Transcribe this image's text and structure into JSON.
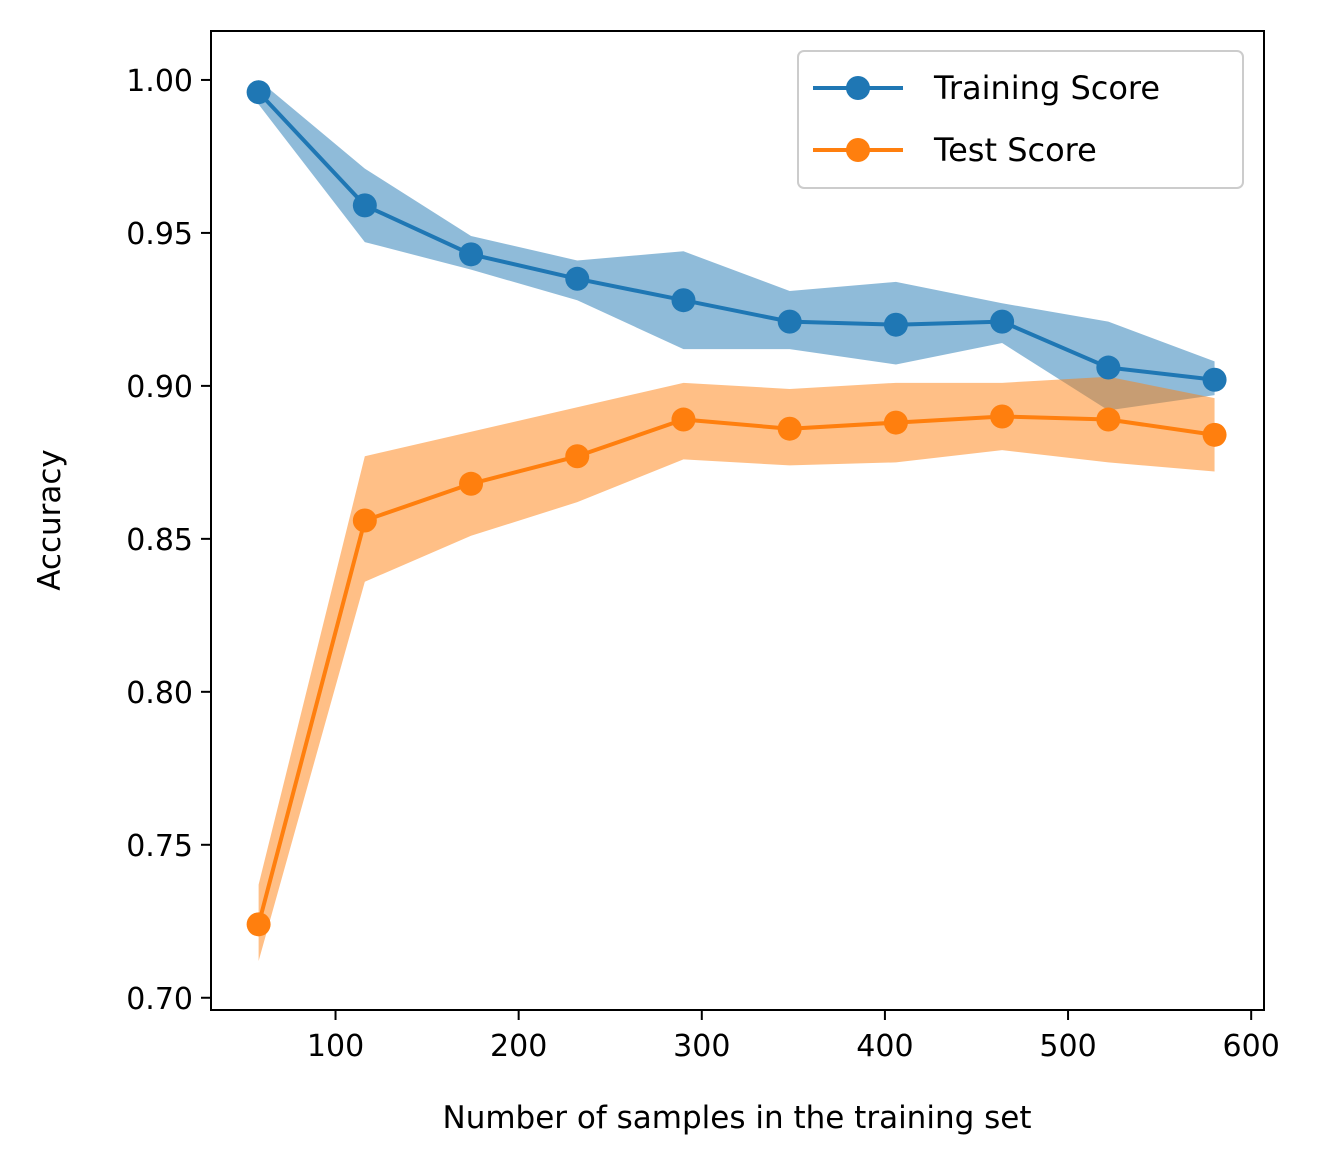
{
  "chart_data": {
    "type": "line",
    "title": "",
    "xlabel": "Number of samples in the training set",
    "ylabel": "Accuracy",
    "xlim": [
      32,
      607
    ],
    "ylim": [
      0.696,
      1.016
    ],
    "xticks": [
      100,
      200,
      300,
      400,
      500,
      600
    ],
    "xtick_labels": [
      "100",
      "200",
      "300",
      "400",
      "500",
      "600"
    ],
    "yticks": [
      0.7,
      0.75,
      0.8,
      0.85,
      0.9,
      0.95,
      1.0
    ],
    "ytick_labels": [
      "0.70",
      "0.75",
      "0.80",
      "0.85",
      "0.90",
      "0.95",
      "1.00"
    ],
    "grid": false,
    "legend_position": "top-right",
    "x": [
      58,
      116,
      174,
      232,
      290,
      348,
      406,
      464,
      522,
      580
    ],
    "series": [
      {
        "name": "Training Score",
        "color": "#1f77b4",
        "band_color": "#7fb2d9",
        "values": [
          0.996,
          0.959,
          0.943,
          0.935,
          0.928,
          0.921,
          0.92,
          0.921,
          0.906,
          0.902
        ],
        "lower": [
          0.992,
          0.947,
          0.938,
          0.928,
          0.912,
          0.912,
          0.907,
          0.914,
          0.892,
          0.897
        ],
        "upper": [
          1.0,
          0.971,
          0.949,
          0.941,
          0.944,
          0.931,
          0.934,
          0.927,
          0.921,
          0.908
        ]
      },
      {
        "name": "Test Score",
        "color": "#ff7f0e",
        "band_color": "#ffbf87",
        "values": [
          0.724,
          0.856,
          0.868,
          0.877,
          0.889,
          0.886,
          0.888,
          0.89,
          0.889,
          0.884
        ],
        "lower": [
          0.712,
          0.836,
          0.851,
          0.862,
          0.876,
          0.874,
          0.875,
          0.879,
          0.875,
          0.872
        ],
        "upper": [
          0.737,
          0.877,
          0.885,
          0.893,
          0.901,
          0.899,
          0.901,
          0.901,
          0.903,
          0.896
        ]
      }
    ]
  }
}
